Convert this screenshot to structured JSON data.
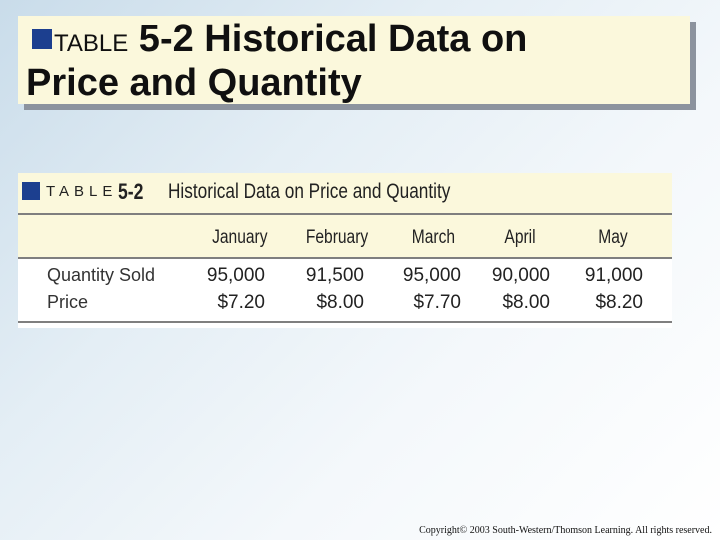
{
  "slide": {
    "title_prefix": "TABLE",
    "title_line1": " 5-2 Historical Data on",
    "title_line2": "Price and Quantity"
  },
  "table": {
    "label": "TABLE",
    "number": "5-2",
    "title": "Historical Data on Price and Quantity",
    "columns": [
      "January",
      "February",
      "March",
      "April",
      "May"
    ],
    "rows": [
      {
        "label": "Quantity Sold",
        "values": [
          "95,000",
          "91,500",
          "95,000",
          "90,000",
          "91,000"
        ]
      },
      {
        "label": "Price",
        "values": [
          "$7.20",
          "$8.00",
          "$7.70",
          "$8.00",
          "$8.20"
        ]
      }
    ]
  },
  "footer": {
    "copyright": "Copyright© 2003 South-Western/Thomson Learning. All rights reserved."
  },
  "colors": {
    "accent": "#1c3f8f",
    "header_band": "#fbf8dc"
  }
}
